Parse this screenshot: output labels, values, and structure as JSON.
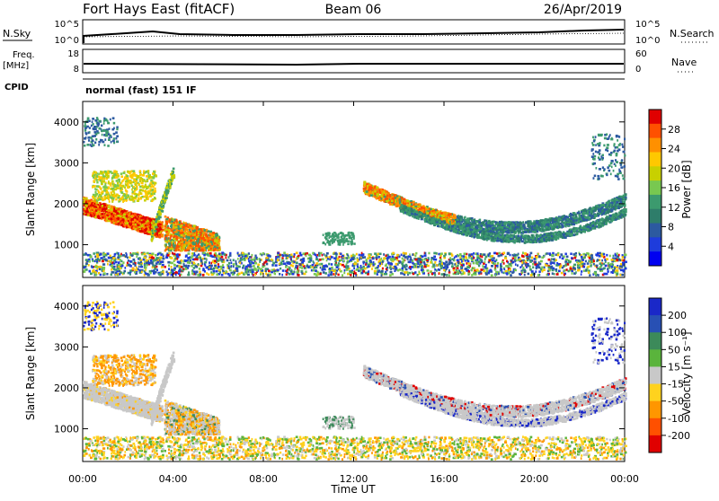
{
  "header": {
    "station": "Fort Hays East (fitACF)",
    "beam": "Beam 06",
    "date": "26/Apr/2019"
  },
  "top_panels": {
    "nsky_label": "N.Sky",
    "nsearch_label": "N.Search",
    "nsky_ticks": [
      "10^5",
      "10^0"
    ],
    "nsearch_ticks": [
      "10^5",
      "10^0"
    ],
    "freq_label": "Freq.",
    "freq_unit": "[MHz]",
    "freq_ticks": [
      "18",
      "8"
    ],
    "nave_label": "Nave",
    "nave_ticks": [
      "60",
      "0"
    ],
    "cpid_label": "CPID",
    "cpid_value": "normal (fast) 151 IF"
  },
  "chart_data": [
    {
      "type": "heatmap",
      "quantity": "Power",
      "ylabel": "Slant Range [km]",
      "yticks": [
        1000,
        2000,
        3000,
        4000
      ],
      "ylim": [
        200,
        4500
      ],
      "xlim": [
        0,
        24
      ],
      "colorbar": {
        "label": "Power [dB]",
        "ticks": [
          "28",
          "24",
          "20",
          "16",
          "12",
          "8",
          "4"
        ],
        "colors": [
          "#e00000",
          "#ff5000",
          "#ff9000",
          "#ffc800",
          "#c8d000",
          "#78c850",
          "#3c9a6e",
          "#2e7d6a",
          "#2c5aa0",
          "#1e3cdc",
          "#0000f0"
        ]
      }
    },
    {
      "type": "heatmap",
      "quantity": "Velocity",
      "ylabel": "Slant Range [km]",
      "yticks": [
        1000,
        2000,
        3000,
        4000
      ],
      "ylim": [
        200,
        4500
      ],
      "xlim": [
        0,
        24
      ],
      "colorbar": {
        "label": "Velocity [m s⁻¹]",
        "ticks": [
          "200",
          "100",
          "50",
          "15",
          "-15",
          "-50",
          "-100",
          "-200"
        ],
        "colors": [
          "#1a28c8",
          "#2850b4",
          "#3c8a5a",
          "#5ab43c",
          "#c8c8c8",
          "#ffd21e",
          "#ff9600",
          "#ff5000",
          "#e00000"
        ]
      }
    }
  ],
  "x_axis": {
    "label": "Time UT",
    "ticks": [
      "00:00",
      "04:00",
      "08:00",
      "12:00",
      "16:00",
      "20:00",
      "00:00"
    ]
  }
}
